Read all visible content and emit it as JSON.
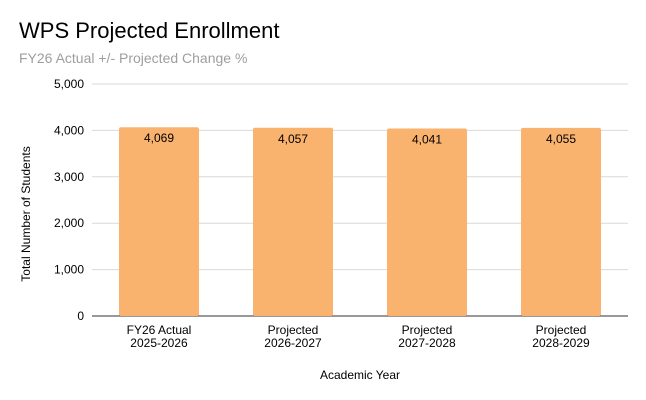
{
  "chart_data": {
    "type": "bar",
    "title": "WPS Projected Enrollment",
    "subtitle": "FY26 Actual +/- Projected Change %",
    "xlabel": "Academic Year",
    "ylabel": "Total Number of Students",
    "categories": [
      [
        "FY26 Actual",
        "2025-2026"
      ],
      [
        "Projected",
        "2026-2027"
      ],
      [
        "Projected",
        "2027-2028"
      ],
      [
        "Projected",
        "2028-2029"
      ]
    ],
    "values": [
      4069,
      4057,
      4041,
      4055
    ],
    "value_labels": [
      "4,069",
      "4,057",
      "4,041",
      "4,055"
    ],
    "ylim": [
      0,
      5000
    ],
    "yticks": [
      0,
      1000,
      2000,
      3000,
      4000,
      5000
    ],
    "ytick_labels": [
      "0",
      "1,000",
      "2,000",
      "3,000",
      "4,000",
      "5,000"
    ],
    "grid": true,
    "legend": "none",
    "colors": {
      "bar": "#f9b36e",
      "grid": "#d9d9d9",
      "subtitle": "#9e9e9e"
    }
  }
}
